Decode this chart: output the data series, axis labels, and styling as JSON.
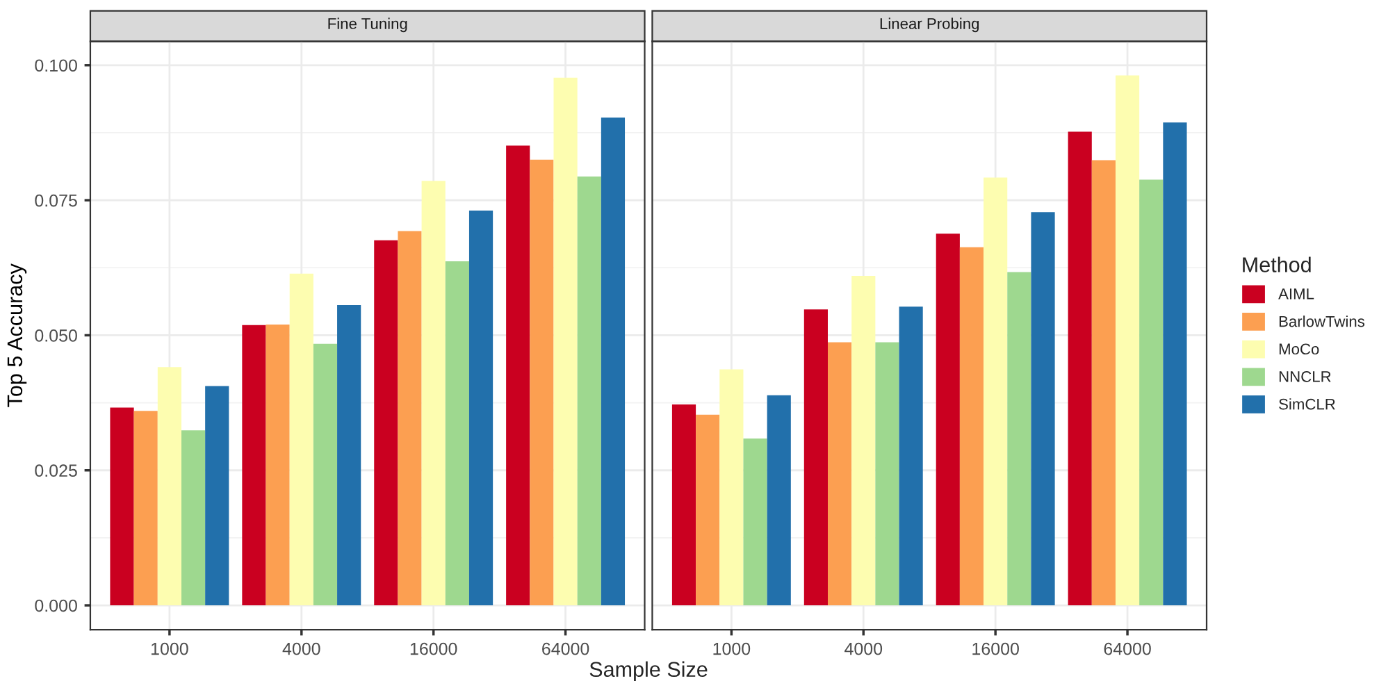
{
  "chart_data": [
    {
      "type": "bar",
      "title": "Fine Tuning",
      "ylabel": "Top 5 Accuracy",
      "xlabel": "Sample Size",
      "categories": [
        "1000",
        "4000",
        "16000",
        "64000"
      ],
      "series": [
        {
          "name": "AIML",
          "color": "#ca0020",
          "values": [
            0.0366,
            0.0519,
            0.0676,
            0.0851
          ]
        },
        {
          "name": "BarlowTwins",
          "color": "#fc9f51",
          "values": [
            0.036,
            0.052,
            0.0693,
            0.0825
          ]
        },
        {
          "name": "MoCo",
          "color": "#fdfdb0",
          "values": [
            0.0441,
            0.0614,
            0.0786,
            0.0977
          ]
        },
        {
          "name": "NNCLR",
          "color": "#9ed88f",
          "values": [
            0.0324,
            0.0484,
            0.0637,
            0.0794
          ]
        },
        {
          "name": "SimCLR",
          "color": "#2270ab",
          "values": [
            0.0406,
            0.0556,
            0.0731,
            0.0903
          ]
        }
      ],
      "ylim": [
        -0.0045,
        0.1044
      ],
      "yticks": [
        {
          "value": 0,
          "label": "0.000"
        },
        {
          "value": 0.025,
          "label": "0.025"
        },
        {
          "value": 0.05,
          "label": "0.050"
        },
        {
          "value": 0.075,
          "label": "0.075"
        },
        {
          "value": 0.1,
          "label": "0.100"
        }
      ],
      "grid": true,
      "legend": "right",
      "legend_title": "Method"
    },
    {
      "type": "bar",
      "title": "Linear Probing",
      "categories": [
        "1000",
        "4000",
        "16000",
        "64000"
      ],
      "series": [
        {
          "color": "#ca0020",
          "values": [
            0.0372,
            0.0548,
            0.0688,
            0.0877
          ]
        },
        {
          "color": "#fc9f51",
          "values": [
            0.0353,
            0.0487,
            0.0663,
            0.0824
          ]
        },
        {
          "color": "#fdfdb0",
          "values": [
            0.0437,
            0.061,
            0.0792,
            0.0981
          ]
        },
        {
          "color": "#9ed88f",
          "values": [
            0.0309,
            0.0487,
            0.0617,
            0.0788
          ]
        },
        {
          "color": "#2270ab",
          "values": [
            0.0389,
            0.0553,
            0.0728,
            0.0894
          ]
        }
      ],
      "ylim": [
        -0.0045,
        0.1044
      ],
      "yticks": [
        0,
        0.025,
        0.05,
        0.075,
        0.1
      ],
      "tick_labels": "x",
      "grid": true
    }
  ]
}
